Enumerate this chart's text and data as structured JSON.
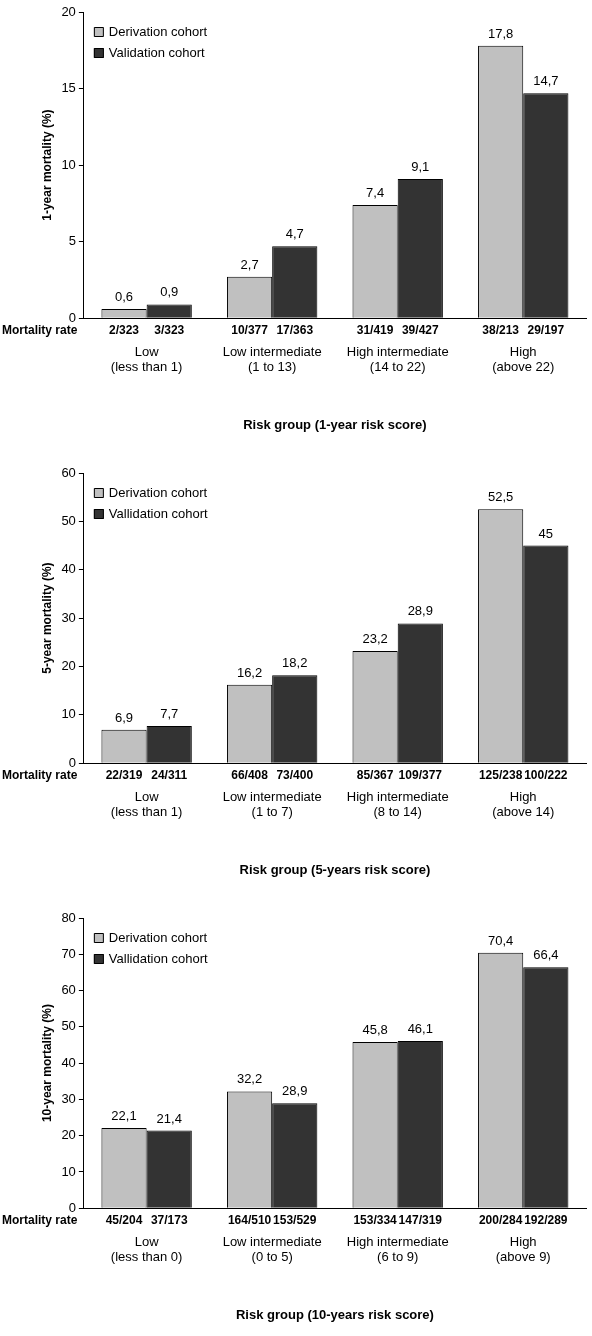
{
  "chart_data": [
    {
      "type": "bar",
      "ylabel": "1-year mortality (%)",
      "xlabel": "Risk group (1-year risk score)",
      "categories": [
        "Low\n(less than 1)",
        "Low intermediate\n(1 to 13)",
        "High intermediate\n(14 to 22)",
        "High\n(above 22)"
      ],
      "series": [
        {
          "name": "Derivation cohort",
          "color": "#c0c0c0",
          "values": [
            0.6,
            2.7,
            7.4,
            17.8
          ],
          "value_labels": [
            "0,6",
            "2,7",
            "7,4",
            "17,8"
          ]
        },
        {
          "name": "Validation cohort",
          "color": "#333333",
          "values": [
            0.9,
            4.7,
            9.1,
            14.7
          ],
          "value_labels": [
            "0,9",
            "4,7",
            "9,1",
            "14,7"
          ]
        }
      ],
      "ylim": [
        0,
        20
      ],
      "yticks": [
        0,
        5,
        10,
        15,
        20
      ],
      "grid": false,
      "legend": "top left",
      "annotations": [
        "Mortality rate",
        {
          "text": "2/323",
          "x": "Low\n(less than 1)",
          "y": 0
        },
        {
          "text": "3/323",
          "x": "Low\n(less than 1)",
          "y": 0
        },
        {
          "text": "10/377",
          "x": "Low intermediate\n(1 to 13)",
          "y": 0
        },
        {
          "text": "17/363",
          "x": "Low intermediate\n(1 to 13)",
          "y": 0
        },
        {
          "text": "31/419",
          "x": "High intermediate\n(14 to 22)",
          "y": 0
        },
        {
          "text": "39/427",
          "x": "High intermediate\n(14 to 22)",
          "y": 0
        },
        {
          "text": "38/213",
          "x": "High\n(above 22)",
          "y": 0
        },
        {
          "text": "29/197",
          "x": "High\n(above 22)",
          "y": 0
        }
      ]
    },
    {
      "type": "bar",
      "ylabel": "5-year mortality (%)",
      "xlabel": "Risk group (5-years risk score)",
      "categories": [
        "Low\n(less than 1)",
        "Low intermediate\n(1 to 7)",
        "High intermediate\n(8 to 14)",
        "High\n(above 14)"
      ],
      "series": [
        {
          "name": "Derivation cohort",
          "color": "#c0c0c0",
          "values": [
            6.9,
            16.2,
            23.2,
            52.5
          ],
          "value_labels": [
            "6,9",
            "16,2",
            "23,2",
            "52,5"
          ]
        },
        {
          "name": "Vallidation cohort",
          "color": "#333333",
          "values": [
            7.7,
            18.2,
            28.9,
            45
          ],
          "value_labels": [
            "7,7",
            "18,2",
            "28,9",
            "45"
          ]
        }
      ],
      "ylim": [
        0,
        60
      ],
      "yticks": [
        0,
        10,
        20,
        30,
        40,
        50,
        60
      ],
      "grid": false,
      "legend": "top left",
      "annotations": [
        "Mortality rate",
        {
          "text": "22/319",
          "x": "Low\n(less than 1)",
          "y": 0
        },
        {
          "text": "24/311",
          "x": "Low\n(less than 1)",
          "y": 0
        },
        {
          "text": "66/408",
          "x": "Low intermediate\n(1 to 7)",
          "y": 0
        },
        {
          "text": "73/400",
          "x": "Low intermediate\n(1 to 7)",
          "y": 0
        },
        {
          "text": "85/367",
          "x": "High intermediate\n(8 to 14)",
          "y": 0
        },
        {
          "text": "109/377",
          "x": "High intermediate\n(8 to 14)",
          "y": 0
        },
        {
          "text": "125/238",
          "x": "High\n(above 14)",
          "y": 0
        },
        {
          "text": "100/222",
          "x": "High\n(above 14)",
          "y": 0
        }
      ]
    },
    {
      "type": "bar",
      "ylabel": "10-year mortality (%)",
      "xlabel": "Risk group (10-years risk score)",
      "categories": [
        "Low\n(less than 0)",
        "Low intermediate\n(0 to 5)",
        "High intermediate\n(6 to 9)",
        "High\n(above 9)"
      ],
      "series": [
        {
          "name": "Derivation cohort",
          "color": "#c0c0c0",
          "values": [
            22.1,
            32.2,
            45.8,
            70.4
          ],
          "value_labels": [
            "22,1",
            "32,2",
            "45,8",
            "70,4"
          ]
        },
        {
          "name": "Vallidation cohort",
          "color": "#333333",
          "values": [
            21.4,
            28.9,
            46.1,
            66.4
          ],
          "value_labels": [
            "21,4",
            "28,9",
            "46,1",
            "66,4"
          ]
        }
      ],
      "ylim": [
        0,
        80
      ],
      "yticks": [
        0,
        10,
        20,
        30,
        40,
        50,
        60,
        70,
        80
      ],
      "grid": false,
      "legend": "top left",
      "annotations": [
        "Mortality rate",
        {
          "text": "45/204",
          "x": "Low\n(less than 0)",
          "y": 0
        },
        {
          "text": "37/173",
          "x": "Low\n(less than 0)",
          "y": 0
        },
        {
          "text": "164/510",
          "x": "Low intermediate\n(0 to 5)",
          "y": 0
        },
        {
          "text": "153/529",
          "x": "Low intermediate\n(0 to 5)",
          "y": 0
        },
        {
          "text": "153/334",
          "x": "High intermediate\n(6 to 9)",
          "y": 0
        },
        {
          "text": "147/319",
          "x": "High intermediate\n(6 to 9)",
          "y": 0
        },
        {
          "text": "200/284",
          "x": "High\n(above 9)",
          "y": 0
        },
        {
          "text": "192/289",
          "x": "High\n(above 9)",
          "y": 0
        }
      ]
    }
  ]
}
